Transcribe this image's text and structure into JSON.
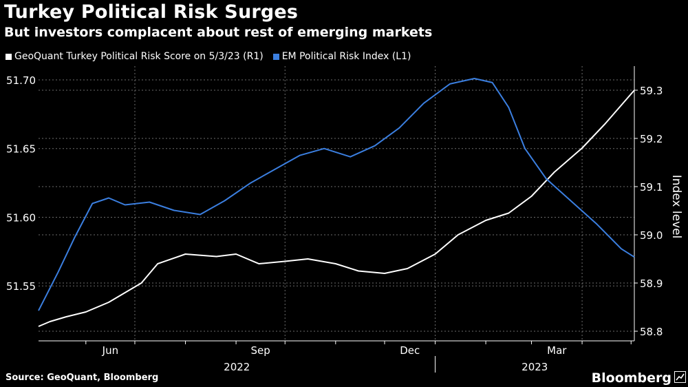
{
  "title": "Turkey Political Risk Surges",
  "subtitle": "But investors complacent about rest of emerging markets",
  "source": "Source: GeoQuant, Bloomberg",
  "brand": "Bloomberg",
  "colors": {
    "background": "#000000",
    "white_series": "#ffffff",
    "blue_series": "#3b7fe0",
    "grid": "#6e6e6e"
  },
  "chart_data": {
    "type": "line",
    "ylabel_right": "Index level",
    "x_tick_labels": [
      "Jun",
      "Sep",
      "Dec",
      "Mar"
    ],
    "year_labels": [
      "2022",
      "2023"
    ],
    "x_range": [
      "2022-05-03",
      "2023-05-03"
    ],
    "yaxis_left": {
      "ticks": [
        "51.55",
        "51.60",
        "51.65",
        "51.70"
      ],
      "lim": [
        51.51,
        51.71
      ]
    },
    "yaxis_right": {
      "ticks": [
        "58.8",
        "58.9",
        "59.0",
        "59.1",
        "59.2",
        "59.3"
      ],
      "lim": [
        58.78,
        59.35
      ]
    },
    "grid": true,
    "legend_position": "top-left",
    "series": [
      {
        "name": "GeoQuant Turkey Political Risk Score on 5/3/23 (R1)",
        "axis": "right",
        "color": "#ffffff",
        "x": [
          "2022-05-03",
          "2022-05-10",
          "2022-05-20",
          "2022-06-01",
          "2022-06-15",
          "2022-06-25",
          "2022-07-05",
          "2022-07-15",
          "2022-08-01",
          "2022-08-20",
          "2022-09-01",
          "2022-09-15",
          "2022-10-01",
          "2022-10-15",
          "2022-11-01",
          "2022-11-15",
          "2022-12-01",
          "2022-12-15",
          "2023-01-01",
          "2023-01-15",
          "2023-02-01",
          "2023-02-15",
          "2023-03-01",
          "2023-03-15",
          "2023-04-01",
          "2023-04-15",
          "2023-05-03"
        ],
        "y": [
          58.81,
          58.82,
          58.83,
          58.84,
          58.86,
          58.88,
          58.9,
          58.94,
          58.96,
          58.955,
          58.96,
          58.94,
          58.945,
          58.95,
          58.94,
          58.925,
          58.92,
          58.93,
          58.96,
          59.0,
          59.03,
          59.045,
          59.08,
          59.13,
          59.18,
          59.23,
          59.3
        ]
      },
      {
        "name": "EM Political Risk Index (L1)",
        "axis": "left",
        "color": "#3b7fe0",
        "x": [
          "2022-05-03",
          "2022-05-15",
          "2022-05-25",
          "2022-06-05",
          "2022-06-15",
          "2022-06-25",
          "2022-07-10",
          "2022-07-25",
          "2022-08-10",
          "2022-08-25",
          "2022-09-10",
          "2022-09-25",
          "2022-10-10",
          "2022-10-25",
          "2022-11-10",
          "2022-11-25",
          "2022-12-10",
          "2022-12-25",
          "2023-01-10",
          "2023-01-25",
          "2023-02-05",
          "2023-02-15",
          "2023-02-25",
          "2023-03-10",
          "2023-03-25",
          "2023-04-10",
          "2023-04-25",
          "2023-05-03"
        ],
        "y": [
          51.532,
          51.56,
          51.585,
          51.61,
          51.614,
          51.609,
          51.611,
          51.605,
          51.602,
          51.612,
          51.625,
          51.635,
          51.645,
          51.65,
          51.644,
          51.652,
          51.665,
          51.683,
          51.697,
          51.701,
          51.698,
          51.68,
          51.65,
          51.628,
          51.612,
          51.595,
          51.577,
          51.571
        ]
      }
    ]
  }
}
